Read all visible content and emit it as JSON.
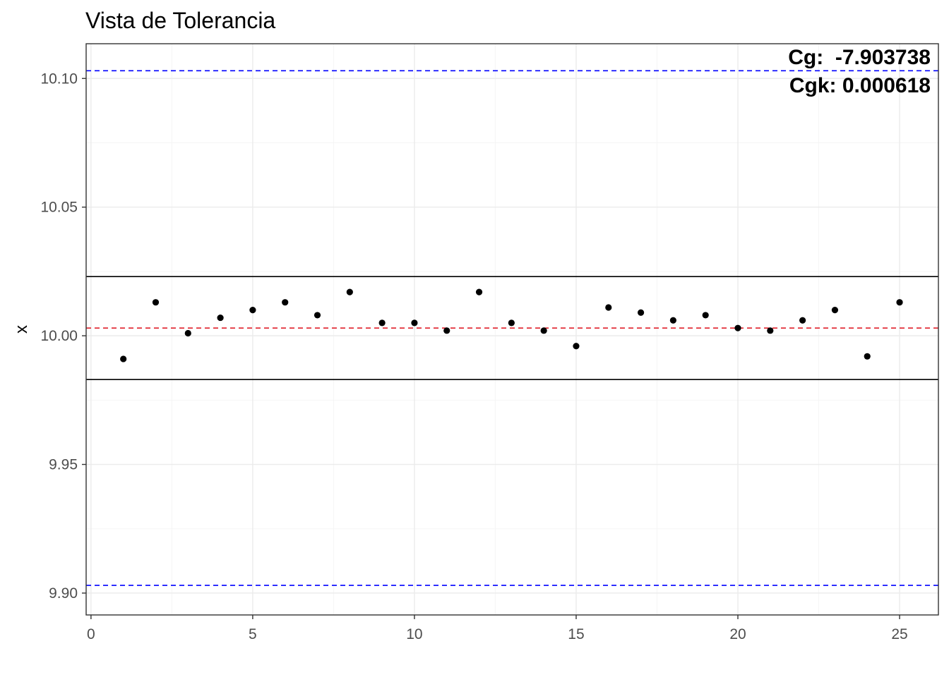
{
  "chart_data": {
    "type": "scatter",
    "title": "Vista de Tolerancia",
    "xlabel": "",
    "ylabel": "x",
    "xlim": [
      -0.15,
      26.2
    ],
    "ylim": [
      9.8915,
      10.1135
    ],
    "x_ticks": [
      0,
      5,
      10,
      15,
      20,
      25
    ],
    "x_tick_labels": [
      "0",
      "5",
      "10",
      "15",
      "20",
      "25"
    ],
    "y_ticks": [
      9.9,
      9.95,
      10.0,
      10.05,
      10.1
    ],
    "y_tick_labels": [
      "9.90",
      "9.95",
      "10.00",
      "10.05",
      "10.10"
    ],
    "grid": true,
    "x": [
      1,
      2,
      3,
      4,
      5,
      6,
      7,
      8,
      9,
      10,
      11,
      12,
      13,
      14,
      15,
      16,
      17,
      18,
      19,
      20,
      21,
      22,
      23,
      24,
      25
    ],
    "y": [
      9.991,
      10.013,
      10.001,
      10.007,
      10.01,
      10.013,
      10.008,
      10.017,
      10.005,
      10.005,
      10.002,
      10.017,
      10.005,
      10.002,
      9.996,
      10.011,
      10.009,
      10.006,
      10.008,
      10.003,
      10.002,
      10.006,
      10.01,
      9.992,
      10.013
    ],
    "reference_lines": [
      {
        "value": 10.103,
        "style": "dashed",
        "color": "#0000ff"
      },
      {
        "value": 9.903,
        "style": "dashed",
        "color": "#0000ff"
      },
      {
        "value": 10.023,
        "style": "solid",
        "color": "#000000"
      },
      {
        "value": 9.983,
        "style": "solid",
        "color": "#000000"
      },
      {
        "value": 10.003,
        "style": "dashed",
        "color": "#e0202a"
      }
    ],
    "annotations": [
      "Cg:  -7.903738",
      "Cgk: 0.000618"
    ],
    "colors": {
      "points": "#000000",
      "tolerance": "#0000ff",
      "reference": "#e0202a",
      "grid_major": "#ebebeb",
      "grid_minor": "#f5f5f5"
    }
  }
}
